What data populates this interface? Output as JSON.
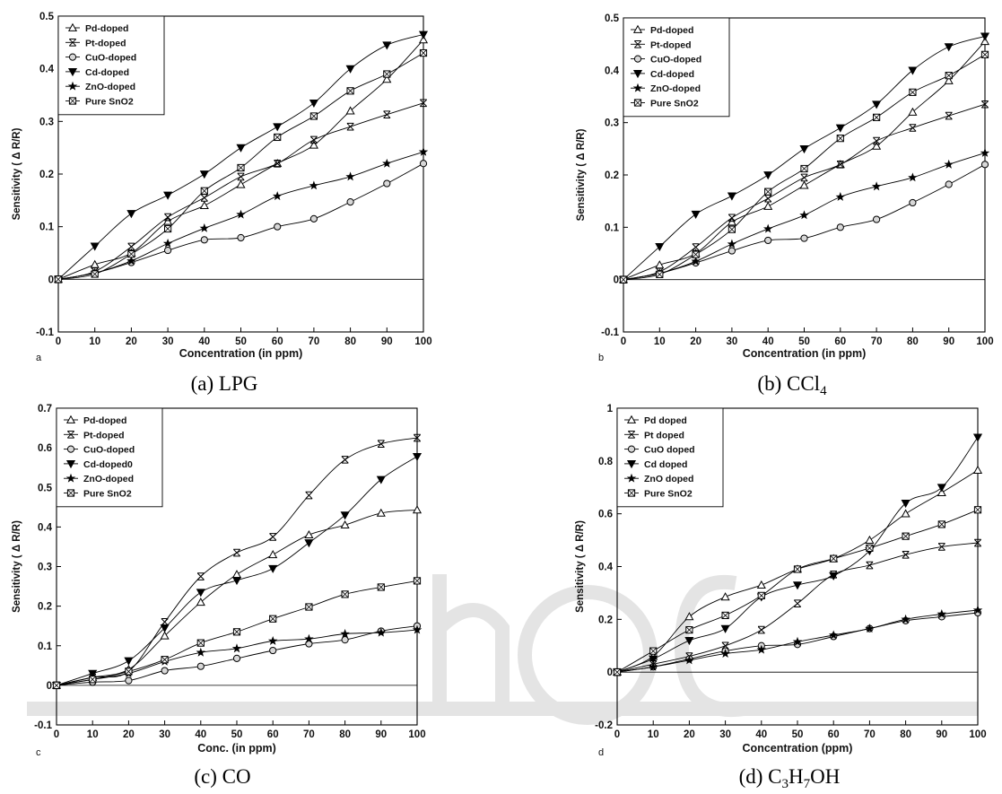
{
  "chart_data": [
    {
      "type": "line",
      "panel_letter": "a",
      "caption": "(a) LPG",
      "xlabel": "Concentration (in ppm)",
      "ylabel": "Sensitivity ( Δ R/R)",
      "xlim": [
        0,
        100
      ],
      "ylim": [
        -0.1,
        0.5
      ],
      "xticks": [
        "0",
        "10",
        "20",
        "30",
        "40",
        "50",
        "60",
        "70",
        "80",
        "90",
        "100"
      ],
      "yticks": [
        "-0.1",
        "0",
        "0.1",
        "0.2",
        "0.3",
        "0.4",
        "0.5"
      ],
      "legend_position": "top-left",
      "x": [
        0,
        10,
        20,
        30,
        40,
        50,
        60,
        70,
        80,
        90,
        100
      ],
      "series": [
        {
          "name": "Pd-doped",
          "marker": "triangle-up",
          "values": [
            0,
            0.028,
            0.05,
            0.11,
            0.14,
            0.18,
            0.22,
            0.255,
            0.32,
            0.38,
            0.455
          ]
        },
        {
          "name": "Pt-doped",
          "marker": "x-bar",
          "values": [
            0,
            0.015,
            0.062,
            0.118,
            0.155,
            0.195,
            0.22,
            0.265,
            0.29,
            0.313,
            0.335
          ]
        },
        {
          "name": "CuO-doped",
          "marker": "circle",
          "values": [
            0,
            0.012,
            0.032,
            0.055,
            0.075,
            0.079,
            0.1,
            0.115,
            0.147,
            0.182,
            0.22
          ]
        },
        {
          "name": "Cd-doped",
          "marker": "triangle-down",
          "values": [
            0,
            0.063,
            0.125,
            0.16,
            0.2,
            0.25,
            0.29,
            0.335,
            0.4,
            0.445,
            0.465
          ]
        },
        {
          "name": "ZnO-doped",
          "marker": "star",
          "values": [
            0,
            0.012,
            0.035,
            0.068,
            0.097,
            0.123,
            0.158,
            0.178,
            0.195,
            0.22,
            0.242
          ]
        },
        {
          "name": "Pure SnO2",
          "marker": "square",
          "values": [
            0,
            0.01,
            0.048,
            0.096,
            0.168,
            0.212,
            0.27,
            0.31,
            0.358,
            0.39,
            0.43
          ]
        }
      ]
    },
    {
      "type": "line",
      "panel_letter": "b",
      "caption": "(b) CCl",
      "caption_sub": "4",
      "xlabel": "Concentration (in ppm)",
      "ylabel": "Sensitivity ( Δ R/R)",
      "xlim": [
        0,
        100
      ],
      "ylim": [
        -0.1,
        0.5
      ],
      "xticks": [
        "0",
        "10",
        "20",
        "30",
        "40",
        "50",
        "60",
        "70",
        "80",
        "90",
        "100"
      ],
      "yticks": [
        "-0.1",
        "0",
        "0.1",
        "0.2",
        "0.3",
        "0.4",
        "0.5"
      ],
      "legend_position": "top-left",
      "x": [
        0,
        10,
        20,
        30,
        40,
        50,
        60,
        70,
        80,
        90,
        100
      ],
      "series": [
        {
          "name": "Pd-doped",
          "marker": "triangle-up",
          "values": [
            0,
            0.028,
            0.05,
            0.11,
            0.14,
            0.18,
            0.22,
            0.255,
            0.32,
            0.38,
            0.455
          ]
        },
        {
          "name": "Pt-doped",
          "marker": "x-bar",
          "values": [
            0,
            0.015,
            0.062,
            0.118,
            0.155,
            0.195,
            0.22,
            0.265,
            0.29,
            0.313,
            0.335
          ]
        },
        {
          "name": "CuO-doped",
          "marker": "circle",
          "values": [
            0,
            0.012,
            0.032,
            0.055,
            0.075,
            0.079,
            0.1,
            0.115,
            0.147,
            0.182,
            0.22
          ]
        },
        {
          "name": "Cd-doped",
          "marker": "triangle-down",
          "values": [
            0,
            0.063,
            0.125,
            0.16,
            0.2,
            0.25,
            0.29,
            0.335,
            0.4,
            0.445,
            0.465
          ]
        },
        {
          "name": "ZnO-doped",
          "marker": "star",
          "values": [
            0,
            0.012,
            0.035,
            0.068,
            0.097,
            0.123,
            0.158,
            0.178,
            0.195,
            0.22,
            0.242
          ]
        },
        {
          "name": "Pure SnO2",
          "marker": "square",
          "values": [
            0,
            0.01,
            0.048,
            0.096,
            0.168,
            0.212,
            0.27,
            0.31,
            0.358,
            0.39,
            0.43
          ]
        }
      ]
    },
    {
      "type": "line",
      "panel_letter": "c",
      "caption": "(c) CO",
      "xlabel": "Conc. (in ppm)",
      "ylabel": "Sensitivity ( Δ R/R)",
      "xlim": [
        0,
        100
      ],
      "ylim": [
        -0.1,
        0.7
      ],
      "xticks": [
        "0",
        "10",
        "20",
        "30",
        "40",
        "50",
        "60",
        "70",
        "80",
        "90",
        "100"
      ],
      "yticks": [
        "-0.1",
        "0",
        "0.1",
        "0.2",
        "0.3",
        "0.4",
        "0.5",
        "0.6",
        "0.7"
      ],
      "legend_position": "top-left",
      "x": [
        0,
        10,
        20,
        30,
        40,
        50,
        60,
        70,
        80,
        90,
        100
      ],
      "series": [
        {
          "name": "Pd-doped",
          "marker": "triangle-up",
          "values": [
            0,
            0.02,
            0.04,
            0.125,
            0.21,
            0.28,
            0.33,
            0.38,
            0.405,
            0.435,
            0.443
          ]
        },
        {
          "name": "Pt-doped",
          "marker": "x-bar",
          "values": [
            0,
            0.02,
            0.035,
            0.16,
            0.275,
            0.335,
            0.375,
            0.48,
            0.57,
            0.61,
            0.625
          ]
        },
        {
          "name": "CuO-doped",
          "marker": "circle",
          "values": [
            0,
            0.008,
            0.012,
            0.037,
            0.048,
            0.068,
            0.088,
            0.105,
            0.115,
            0.137,
            0.15
          ]
        },
        {
          "name": "Cd-doped0",
          "marker": "triangle-down",
          "values": [
            0,
            0.03,
            0.062,
            0.145,
            0.235,
            0.265,
            0.295,
            0.36,
            0.43,
            0.52,
            0.578
          ]
        },
        {
          "name": "ZnO-doped",
          "marker": "star",
          "values": [
            0,
            0.015,
            0.03,
            0.06,
            0.083,
            0.093,
            0.112,
            0.117,
            0.13,
            0.133,
            0.14
          ]
        },
        {
          "name": "Pure SnO2",
          "marker": "square",
          "values": [
            0,
            0.015,
            0.035,
            0.065,
            0.107,
            0.135,
            0.168,
            0.198,
            0.23,
            0.248,
            0.264
          ]
        }
      ]
    },
    {
      "type": "line",
      "panel_letter": "d",
      "caption": "(d) C",
      "caption_parts": [
        {
          "text": "(d) C"
        },
        {
          "text": "3",
          "sub": true
        },
        {
          "text": "H"
        },
        {
          "text": "7",
          "sub": true
        },
        {
          "text": "OH"
        }
      ],
      "xlabel": "Concentration (ppm)",
      "ylabel": "Sensitivity ( Δ R/R)",
      "xlim": [
        0,
        100
      ],
      "ylim": [
        -0.2,
        1.0
      ],
      "xticks": [
        "0",
        "10",
        "20",
        "30",
        "40",
        "50",
        "60",
        "70",
        "80",
        "90",
        "100"
      ],
      "yticks": [
        "-0.2",
        "0",
        "0.2",
        "0.4",
        "0.6",
        "0.8",
        "1"
      ],
      "legend_position": "top-left",
      "x": [
        0,
        10,
        20,
        30,
        40,
        50,
        60,
        70,
        80,
        90,
        100
      ],
      "series": [
        {
          "name": "Pd doped",
          "marker": "triangle-up",
          "values": [
            0,
            0.06,
            0.21,
            0.285,
            0.33,
            0.39,
            0.43,
            0.5,
            0.6,
            0.68,
            0.765
          ]
        },
        {
          "name": "Pt doped",
          "marker": "x-bar",
          "values": [
            0,
            0.03,
            0.06,
            0.1,
            0.16,
            0.26,
            0.37,
            0.405,
            0.445,
            0.475,
            0.49
          ]
        },
        {
          "name": "CuO doped",
          "marker": "circle",
          "values": [
            0,
            0.02,
            0.05,
            0.08,
            0.1,
            0.105,
            0.135,
            0.165,
            0.195,
            0.21,
            0.225
          ]
        },
        {
          "name": "Cd doped",
          "marker": "triangle-down",
          "values": [
            0,
            0.05,
            0.12,
            0.165,
            0.285,
            0.33,
            0.365,
            0.46,
            0.64,
            0.7,
            0.89
          ]
        },
        {
          "name": "ZnO doped",
          "marker": "star",
          "values": [
            0,
            0.02,
            0.045,
            0.07,
            0.085,
            0.115,
            0.14,
            0.165,
            0.2,
            0.22,
            0.235
          ]
        },
        {
          "name": "Pure SnO2",
          "marker": "square",
          "values": [
            0,
            0.08,
            0.16,
            0.215,
            0.29,
            0.39,
            0.43,
            0.47,
            0.515,
            0.56,
            0.615
          ]
        }
      ]
    }
  ]
}
